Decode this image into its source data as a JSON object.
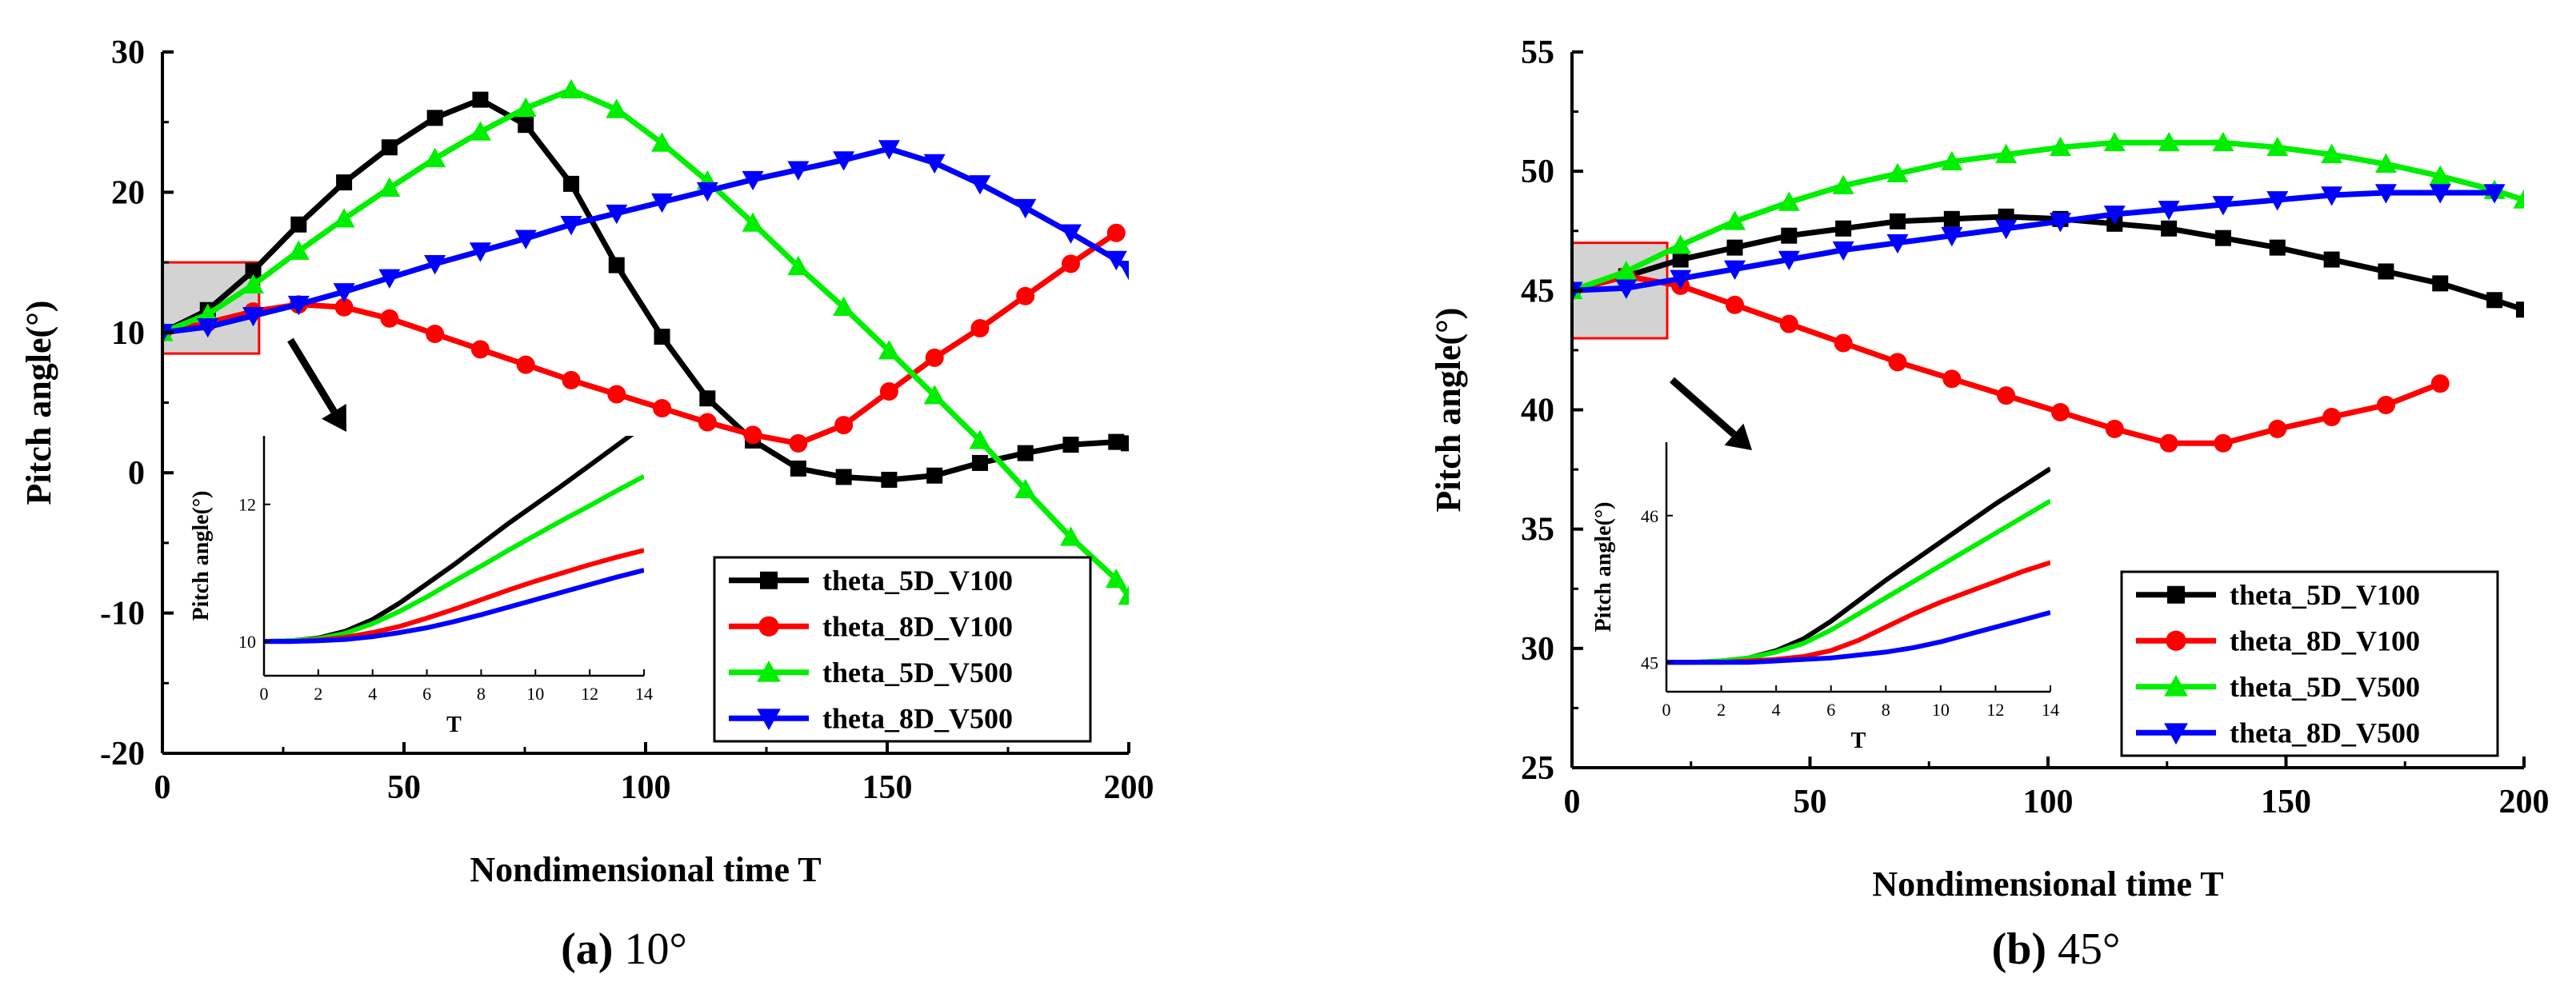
{
  "chart_data": [
    {
      "type": "line",
      "caption_letter": "(a)",
      "caption_text": " 10°",
      "xlabel": "Nondimensional time T",
      "ylabel": "Pitch angle(°)",
      "xlim": [
        0,
        200
      ],
      "ylim": [
        -20,
        30
      ],
      "xticks": [
        0,
        50,
        100,
        150,
        200
      ],
      "yticks": [
        -20,
        -10,
        0,
        10,
        20,
        30
      ],
      "legend_position": "bottom-right",
      "highlight_box": {
        "x0": 0,
        "x1": 20,
        "y0": 8.5,
        "y1": 15
      },
      "series": [
        {
          "name": "theta_5D_V100",
          "color": "#000000",
          "marker": "square",
          "x": [
            0,
            9.4,
            18.8,
            28.2,
            37.6,
            47,
            56.4,
            65.8,
            75.2,
            84.6,
            94,
            103.4,
            112.8,
            122.2,
            131.6,
            141,
            150.4,
            159.8,
            169.2,
            178.6,
            188,
            197.4,
            200
          ],
          "y": [
            10,
            11.6,
            14.4,
            17.7,
            20.7,
            23.2,
            25.3,
            26.6,
            24.8,
            20.6,
            14.8,
            9.7,
            5.3,
            2.3,
            0.3,
            -0.3,
            -0.5,
            -0.2,
            0.7,
            1.4,
            2.0,
            2.2,
            2.1
          ]
        },
        {
          "name": "theta_8D_V100",
          "color": "#ff0000",
          "marker": "circle",
          "x": [
            0,
            9.4,
            18.8,
            28.2,
            37.6,
            47,
            56.4,
            65.8,
            75.2,
            84.6,
            94,
            103.4,
            112.8,
            122.2,
            131.6,
            141,
            150.4,
            159.8,
            169.2,
            178.6,
            188,
            197.4
          ],
          "y": [
            10,
            10.7,
            11.5,
            12,
            11.8,
            11.0,
            9.9,
            8.8,
            7.7,
            6.6,
            5.6,
            4.6,
            3.6,
            2.7,
            2.1,
            3.4,
            5.8,
            8.2,
            10.3,
            12.6,
            14.9,
            17.1
          ]
        },
        {
          "name": "theta_5D_V500",
          "color": "#00ee00",
          "marker": "triangle-up",
          "x": [
            0,
            9.4,
            18.8,
            28.2,
            37.6,
            47,
            56.4,
            65.8,
            75.2,
            84.6,
            94,
            103.4,
            112.8,
            122.2,
            131.6,
            141,
            150.4,
            159.8,
            169.2,
            178.6,
            188,
            197.4,
            200
          ],
          "y": [
            10,
            11.3,
            13.4,
            15.8,
            18.1,
            20.3,
            22.4,
            24.3,
            26,
            27.3,
            25.9,
            23.5,
            20.8,
            17.8,
            14.7,
            11.8,
            8.7,
            5.5,
            2.3,
            -1.2,
            -4.6,
            -7.6,
            -8.8
          ]
        },
        {
          "name": "theta_8D_V500",
          "color": "#0000ff",
          "marker": "triangle-down",
          "x": [
            0,
            9.4,
            18.8,
            28.2,
            37.6,
            47,
            56.4,
            65.8,
            75.2,
            84.6,
            94,
            103.4,
            112.8,
            122.2,
            131.6,
            141,
            150.4,
            159.8,
            169.2,
            178.6,
            188,
            197.4,
            200
          ],
          "y": [
            10,
            10.4,
            11.2,
            12,
            12.9,
            13.9,
            14.9,
            15.8,
            16.7,
            17.7,
            18.5,
            19.3,
            20.1,
            20.9,
            21.6,
            22.3,
            23.1,
            22.1,
            20.6,
            18.9,
            17.1,
            15.2,
            14.5
          ]
        }
      ],
      "inset": {
        "xlabel": "T",
        "ylabel": "Pitch angle(°)",
        "xlim": [
          0,
          14
        ],
        "ylim": [
          9.5,
          13
        ],
        "xticks": [
          0,
          2,
          4,
          6,
          8,
          10,
          12,
          14
        ],
        "yticks": [
          10,
          12
        ],
        "series": [
          {
            "name": "theta_5D_V100",
            "color": "#000000",
            "x": [
              0,
              1,
              2,
              3,
              4,
              5,
              6,
              7,
              8,
              9,
              10,
              11,
              12,
              13,
              14
            ],
            "y": [
              10,
              10.01,
              10.05,
              10.15,
              10.32,
              10.56,
              10.84,
              11.12,
              11.42,
              11.72,
              12.0,
              12.28,
              12.57,
              12.86,
              13.15
            ]
          },
          {
            "name": "theta_5D_V500",
            "color": "#00ee00",
            "x": [
              0,
              1,
              2,
              3,
              4,
              5,
              6,
              7,
              8,
              9,
              10,
              11,
              12,
              13,
              14
            ],
            "y": [
              10,
              10.01,
              10.04,
              10.12,
              10.26,
              10.44,
              10.65,
              10.88,
              11.1,
              11.33,
              11.55,
              11.77,
              11.98,
              12.2,
              12.41
            ]
          },
          {
            "name": "theta_8D_V100",
            "color": "#ff0000",
            "x": [
              0,
              1,
              2,
              3,
              4,
              5,
              6,
              7,
              8,
              9,
              10,
              11,
              12,
              13,
              14
            ],
            "y": [
              10,
              10.0,
              10.02,
              10.06,
              10.13,
              10.22,
              10.34,
              10.47,
              10.61,
              10.75,
              10.88,
              11.0,
              11.12,
              11.23,
              11.33
            ]
          },
          {
            "name": "theta_8D_V500",
            "color": "#0000ff",
            "x": [
              0,
              1,
              2,
              3,
              4,
              5,
              6,
              7,
              8,
              9,
              10,
              11,
              12,
              13,
              14
            ],
            "y": [
              10,
              10.0,
              10.01,
              10.03,
              10.07,
              10.13,
              10.2,
              10.29,
              10.39,
              10.5,
              10.61,
              10.72,
              10.83,
              10.94,
              11.04
            ]
          }
        ]
      }
    },
    {
      "type": "line",
      "caption_letter": "(b)",
      "caption_text": " 45°",
      "xlabel": "Nondimensional time T",
      "ylabel": "Pitch angle(°)",
      "xlim": [
        0,
        200
      ],
      "ylim": [
        25,
        55
      ],
      "xticks": [
        0,
        50,
        100,
        150,
        200
      ],
      "yticks": [
        25,
        30,
        35,
        40,
        45,
        50,
        55
      ],
      "legend_position": "bottom-right",
      "highlight_box": {
        "x0": 0,
        "x1": 20,
        "y0": 43,
        "y1": 47
      },
      "series": [
        {
          "name": "theta_5D_V100",
          "color": "#000000",
          "marker": "square",
          "x": [
            0,
            11.4,
            22.8,
            34.2,
            45.6,
            57,
            68.4,
            79.8,
            91.2,
            102.6,
            114,
            125.4,
            136.8,
            148.2,
            159.6,
            171,
            182.4,
            193.8,
            200
          ],
          "y": [
            45,
            45.6,
            46.3,
            46.8,
            47.3,
            47.6,
            47.9,
            48.0,
            48.1,
            48.0,
            47.8,
            47.6,
            47.2,
            46.8,
            46.3,
            45.8,
            45.3,
            44.6,
            44.2
          ]
        },
        {
          "name": "theta_8D_V100",
          "color": "#ff0000",
          "marker": "circle",
          "x": [
            0,
            11.4,
            22.8,
            34.2,
            45.6,
            57,
            68.4,
            79.8,
            91.2,
            102.6,
            114,
            125.4,
            136.8,
            148.2,
            159.6,
            171,
            182.4
          ],
          "y": [
            45,
            45.6,
            45.2,
            44.4,
            43.6,
            42.8,
            42.0,
            41.3,
            40.6,
            39.9,
            39.2,
            38.6,
            38.6,
            39.2,
            39.7,
            40.2,
            41.1
          ]
        },
        {
          "name": "theta_5D_V500",
          "color": "#00ee00",
          "marker": "triangle-up",
          "x": [
            0,
            11.4,
            22.8,
            34.2,
            45.6,
            57,
            68.4,
            79.8,
            91.2,
            102.6,
            114,
            125.4,
            136.8,
            148.2,
            159.6,
            171,
            182.4,
            193.8,
            200
          ],
          "y": [
            45,
            45.8,
            46.9,
            47.9,
            48.7,
            49.4,
            49.9,
            50.4,
            50.7,
            51.0,
            51.2,
            51.2,
            51.2,
            51.0,
            50.7,
            50.3,
            49.8,
            49.2,
            48.8
          ]
        },
        {
          "name": "theta_8D_V500",
          "color": "#0000ff",
          "marker": "triangle-down",
          "x": [
            0,
            11.4,
            22.8,
            34.2,
            45.6,
            57,
            68.4,
            79.8,
            91.2,
            102.6,
            114,
            125.4,
            136.8,
            148.2,
            159.6,
            171,
            182.4,
            193.8
          ],
          "y": [
            45,
            45.1,
            45.5,
            45.9,
            46.3,
            46.7,
            47.0,
            47.3,
            47.6,
            47.9,
            48.2,
            48.4,
            48.6,
            48.8,
            49.0,
            49.1,
            49.1,
            49.1
          ]
        }
      ],
      "inset": {
        "xlabel": "T",
        "ylabel": "Pitch angle(°)",
        "xlim": [
          0,
          14
        ],
        "ylim": [
          44.8,
          46.5
        ],
        "xticks": [
          0,
          2,
          4,
          6,
          8,
          10,
          12,
          14
        ],
        "yticks": [
          45,
          46
        ],
        "series": [
          {
            "name": "theta_5D_V100",
            "color": "#000000",
            "x": [
              0,
              1,
              2,
              3,
              4,
              5,
              6,
              7,
              8,
              9,
              10,
              11,
              12,
              13,
              14
            ],
            "y": [
              45,
              45.0,
              45.01,
              45.03,
              45.08,
              45.16,
              45.28,
              45.42,
              45.56,
              45.69,
              45.82,
              45.95,
              46.08,
              46.2,
              46.32
            ]
          },
          {
            "name": "theta_5D_V500",
            "color": "#00ee00",
            "x": [
              0,
              1,
              2,
              3,
              4,
              5,
              6,
              7,
              8,
              9,
              10,
              11,
              12,
              13,
              14
            ],
            "y": [
              45,
              45.0,
              45.01,
              45.03,
              45.07,
              45.13,
              45.22,
              45.33,
              45.44,
              45.55,
              45.66,
              45.77,
              45.88,
              45.99,
              46.1
            ]
          },
          {
            "name": "theta_8D_V100",
            "color": "#ff0000",
            "x": [
              0,
              1,
              2,
              3,
              4,
              5,
              6,
              7,
              8,
              9,
              10,
              11,
              12,
              13,
              14
            ],
            "y": [
              45,
              45.0,
              45.0,
              45.01,
              45.02,
              45.04,
              45.08,
              45.15,
              45.24,
              45.33,
              45.41,
              45.48,
              45.55,
              45.62,
              45.68
            ]
          },
          {
            "name": "theta_8D_V500",
            "color": "#0000ff",
            "x": [
              0,
              1,
              2,
              3,
              4,
              5,
              6,
              7,
              8,
              9,
              10,
              11,
              12,
              13,
              14
            ],
            "y": [
              45,
              45.0,
              45.0,
              45.0,
              45.01,
              45.02,
              45.03,
              45.05,
              45.07,
              45.1,
              45.14,
              45.19,
              45.24,
              45.29,
              45.34
            ]
          }
        ]
      }
    }
  ]
}
